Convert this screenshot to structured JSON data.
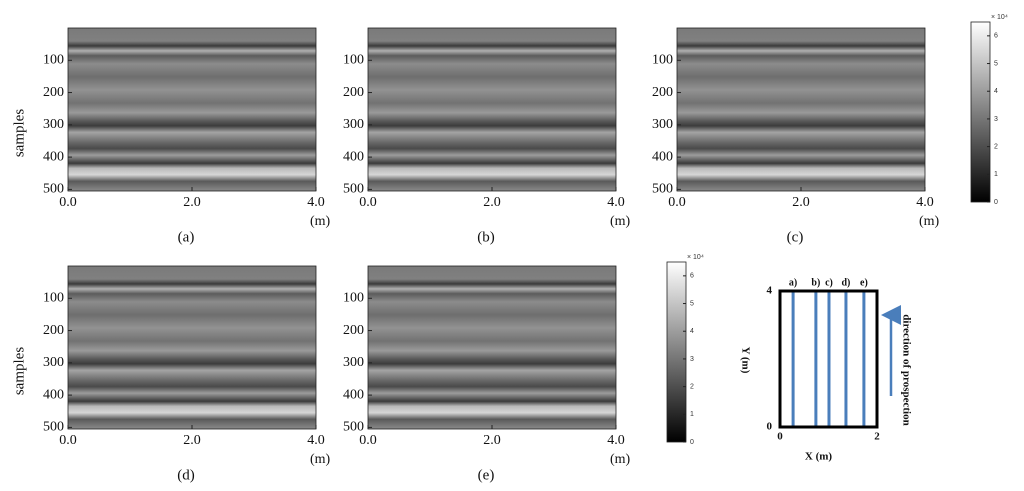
{
  "radargram": {
    "ylabel": "samples",
    "xunit": "(m)",
    "xlim": [
      0,
      4
    ],
    "ylim": [
      0,
      505
    ],
    "xticks": [
      {
        "value": 0,
        "label": "0.0"
      },
      {
        "value": 2,
        "label": "2.0"
      },
      {
        "value": 4,
        "label": "4.0"
      }
    ],
    "yticks": [
      100,
      200,
      300,
      400,
      500
    ]
  },
  "panels": [
    {
      "caption": "(a)"
    },
    {
      "caption": "(b)"
    },
    {
      "caption": "(c)"
    },
    {
      "caption": "(d)"
    },
    {
      "caption": "(e)"
    }
  ],
  "colorbar": {
    "multiplier": "× 10⁴",
    "lim": [
      0,
      6.5
    ],
    "ticks": [
      0,
      1,
      2,
      3,
      4,
      5,
      6
    ]
  },
  "schematic": {
    "xlabel": "X (m)",
    "ylabel": "Y (m)",
    "xlim": [
      0,
      2
    ],
    "ylim": [
      0,
      4
    ],
    "xticks": [
      0,
      2
    ],
    "yticks": [
      0,
      4
    ],
    "lines": [
      {
        "label": "a)",
        "x": 0.27
      },
      {
        "label": "b)",
        "x": 0.74
      },
      {
        "label": "c)",
        "x": 1.01
      },
      {
        "label": "d)",
        "x": 1.36
      },
      {
        "label": "e)",
        "x": 1.73
      }
    ],
    "arrow_label": "direction of prospection"
  }
}
